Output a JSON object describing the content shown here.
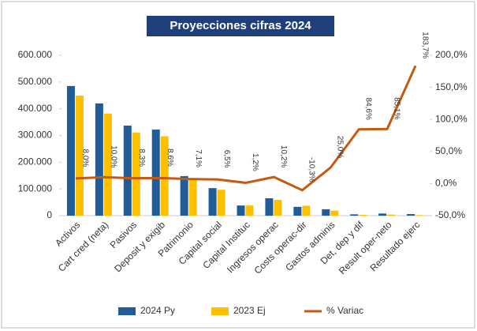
{
  "chart_data": {
    "type": "bar-line",
    "title": "Proyecciones cifras 2024",
    "categories": [
      "Activos",
      "Cart cred (neta)",
      "Pasivos",
      "Deposit y exigib",
      "Patrimonio",
      "Capital social",
      "Capital Instituc",
      "Ingresos operac",
      "Costs operac-dir",
      "Gastos adminis",
      "Det, dep y dif",
      "Result oper-neto",
      "Resultado ejerc"
    ],
    "series": [
      {
        "name": "2024 Py",
        "type": "bar",
        "color": "#1f5c99",
        "values": [
          485000,
          420000,
          337000,
          322000,
          148000,
          103000,
          38000,
          65000,
          33000,
          24000,
          5000,
          8000,
          6000
        ]
      },
      {
        "name": "2023 Ej",
        "type": "bar",
        "color": "#ffc000",
        "values": [
          449000,
          382000,
          311000,
          297000,
          138000,
          97000,
          38000,
          59000,
          37000,
          19000,
          3000,
          4000,
          2000
        ]
      },
      {
        "name": "% Variac",
        "type": "line",
        "axis": "y2",
        "color": "#c55a11",
        "values": [
          8.0,
          10.0,
          8.3,
          8.6,
          7.1,
          6.5,
          1.2,
          10.2,
          -10.3,
          25.0,
          84.6,
          85.1,
          183.7
        ],
        "value_labels": [
          "8,0%",
          "10,0%",
          "8,3%",
          "8,6%",
          "7,1%",
          "6,5%",
          "1,2%",
          "10,2%",
          "-10,3%",
          "25,0%",
          "84,6%",
          "85,1%",
          "183,7%"
        ]
      }
    ],
    "ylim": [
      0,
      600000
    ],
    "yticks": [
      0,
      {
        "value": 100000,
        "label": "100.000"
      },
      {
        "value": 200000,
        "label": "200.000"
      },
      {
        "value": 300000,
        "label": "300.000"
      },
      {
        "value": 400000,
        "label": "400.000"
      },
      {
        "value": 500000,
        "label": "500.000"
      },
      {
        "value": 600000,
        "label": "600.000"
      }
    ],
    "y2lim": [
      -50,
      200
    ],
    "y2ticks": [
      {
        "value": -50,
        "label": "-50,0%"
      },
      {
        "value": 0,
        "label": "0,0%"
      },
      {
        "value": 50,
        "label": "50,0%"
      },
      {
        "value": 100,
        "label": "100,0%"
      },
      {
        "value": 150,
        "label": "150,0%"
      },
      {
        "value": 200,
        "label": "200,0%"
      }
    ],
    "legend": "bottom",
    "grid": false
  }
}
